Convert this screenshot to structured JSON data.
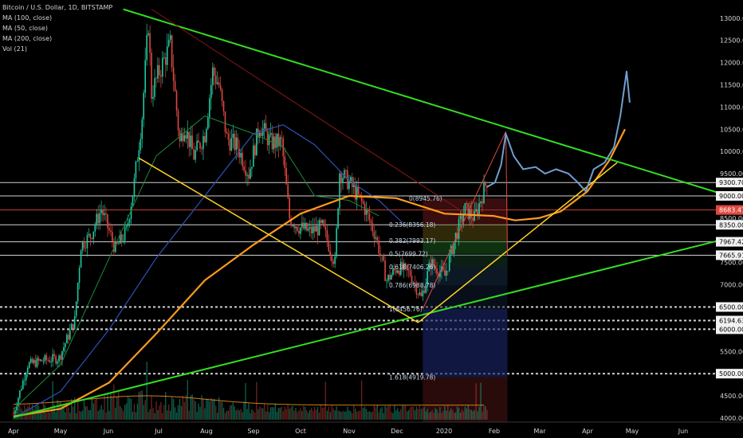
{
  "legend": {
    "symbol": "Bitcoin / U.S. Dollar, 1D, BITSTAMP",
    "ma100": "MA (100, close)",
    "ma50": "MA (50, close)",
    "ma200": "MA (200, close)",
    "vol": "Vol (21)"
  },
  "chart_data": {
    "type": "candlestick",
    "title": "Bitcoin / U.S. Dollar, 1D, BITSTAMP",
    "x_ticks": [
      "Apr",
      "May",
      "Jun",
      "Jul",
      "Aug",
      "Sep",
      "Oct",
      "Nov",
      "Dec",
      "2020",
      "Feb",
      "Mar",
      "Apr",
      "May",
      "Jun"
    ],
    "y_ticks": [
      4000,
      4500,
      5000,
      5500,
      6000,
      6500,
      7000,
      7500,
      8000,
      8500,
      9000,
      9500,
      10000,
      10500,
      11000,
      11500,
      12000,
      12500,
      13000
    ],
    "y_tick_labels": [
      "4000.00",
      "4500.00",
      "5000.00",
      "5500.00",
      "6000.00",
      "6500.00",
      "7000.00",
      "7500.00",
      "8000.00",
      "8500.00",
      "9000.00",
      "9500.00",
      "10000.00",
      "10500.00",
      "11000.00",
      "11500.00",
      "12000.00",
      "12500.00",
      "13000.00"
    ],
    "ylim": [
      3990,
      13220
    ],
    "price_tags": [
      {
        "value": 9300.7,
        "label": "9300.70",
        "bg": "#f2f2f2",
        "fg": "#000000"
      },
      {
        "value": 9000.0,
        "label": "9000.00",
        "bg": "#f2f2f2",
        "fg": "#000000"
      },
      {
        "value": 8683.47,
        "label": "8683.47",
        "bg": "#e0483f",
        "fg": "#ffffff"
      },
      {
        "value": 8350.0,
        "label": "8350.00",
        "bg": "#f2f2f2",
        "fg": "#000000"
      },
      {
        "value": 7967.42,
        "label": "7967.42",
        "bg": "#f2f2f2",
        "fg": "#000000"
      },
      {
        "value": 7665.91,
        "label": "7665.91",
        "bg": "#f2f2f2",
        "fg": "#000000"
      },
      {
        "value": 6500.0,
        "label": "6500.00",
        "bg": "#f2f2f2",
        "fg": "#000000"
      },
      {
        "value": 6194.63,
        "label": "6194.63",
        "bg": "#f2f2f2",
        "fg": "#000000"
      },
      {
        "value": 6000.0,
        "label": "6000.00",
        "bg": "#f2f2f2",
        "fg": "#000000"
      },
      {
        "value": 5000.0,
        "label": "5000.00",
        "bg": "#f2f2f2",
        "fg": "#000000"
      }
    ],
    "fib_labels": [
      {
        "text": "0(8945.76)",
        "value": 8945.76
      },
      {
        "text": "0.236(8356.18)",
        "value": 8356.18
      },
      {
        "text": "0.382(7993.17)",
        "value": 7993.17
      },
      {
        "text": "0.5(7699.72)",
        "value": 7699.72
      },
      {
        "text": "0.618(7406.26)",
        "value": 7406.26
      },
      {
        "text": "0.786(6988.78)",
        "value": 6988.78
      },
      {
        "text": "1(6456.76)",
        "value": 6456.76
      },
      {
        "text": "1.618(4919.78)",
        "value": 4919.78
      }
    ],
    "price_path": [
      [
        "2019-04-01",
        4100
      ],
      [
        "2019-04-10",
        5200
      ],
      [
        "2019-04-20",
        5300
      ],
      [
        "2019-04-30",
        5350
      ],
      [
        "2019-05-10",
        6200
      ],
      [
        "2019-05-14",
        7900
      ],
      [
        "2019-05-20",
        8100
      ],
      [
        "2019-05-27",
        8700
      ],
      [
        "2019-06-05",
        7800
      ],
      [
        "2019-06-12",
        8200
      ],
      [
        "2019-06-17",
        9300
      ],
      [
        "2019-06-22",
        10800
      ],
      [
        "2019-06-26",
        12900
      ],
      [
        "2019-06-28",
        11300
      ],
      [
        "2019-07-03",
        11800
      ],
      [
        "2019-07-10",
        12400
      ],
      [
        "2019-07-16",
        10200
      ],
      [
        "2019-07-19",
        10600
      ],
      [
        "2019-07-25",
        9900
      ],
      [
        "2019-08-01",
        10400
      ],
      [
        "2019-08-06",
        11800
      ],
      [
        "2019-08-10",
        11500
      ],
      [
        "2019-08-15",
        10300
      ],
      [
        "2019-08-22",
        10100
      ],
      [
        "2019-08-29",
        9500
      ],
      [
        "2019-09-05",
        10600
      ],
      [
        "2019-09-12",
        10200
      ],
      [
        "2019-09-19",
        10200
      ],
      [
        "2019-09-24",
        8500
      ],
      [
        "2019-09-30",
        8300
      ],
      [
        "2019-10-07",
        8200
      ],
      [
        "2019-10-15",
        8300
      ],
      [
        "2019-10-23",
        7500
      ],
      [
        "2019-10-26",
        9550
      ],
      [
        "2019-11-02",
        9250
      ],
      [
        "2019-11-10",
        8800
      ],
      [
        "2019-11-18",
        8100
      ],
      [
        "2019-11-25",
        7100
      ],
      [
        "2019-12-02",
        7400
      ],
      [
        "2019-12-10",
        7250
      ],
      [
        "2019-12-17",
        6700
      ],
      [
        "2019-12-23",
        7500
      ],
      [
        "2020-01-01",
        7200
      ],
      [
        "2020-01-08",
        8100
      ],
      [
        "2020-01-14",
        8700
      ],
      [
        "2020-01-20",
        8500
      ],
      [
        "2020-01-28",
        9350
      ]
    ],
    "projection_path": [
      [
        "2020-01-28",
        9200
      ],
      [
        "2020-02-02",
        9300
      ],
      [
        "2020-02-06",
        9700
      ],
      [
        "2020-02-09",
        10400
      ],
      [
        "2020-02-14",
        9900
      ],
      [
        "2020-02-20",
        9600
      ],
      [
        "2020-02-28",
        9650
      ],
      [
        "2020-03-05",
        9500
      ],
      [
        "2020-03-12",
        9600
      ],
      [
        "2020-03-20",
        9500
      ],
      [
        "2020-03-26",
        9300
      ],
      [
        "2020-03-31",
        9100
      ],
      [
        "2020-04-05",
        9600
      ],
      [
        "2020-04-12",
        9750
      ],
      [
        "2020-04-18",
        10100
      ],
      [
        "2020-04-22",
        10800
      ],
      [
        "2020-04-26",
        11800
      ],
      [
        "2020-04-28",
        11100
      ]
    ],
    "ma200": [
      [
        "2019-04-01",
        4040
      ],
      [
        "2019-05-01",
        4210
      ],
      [
        "2019-06-01",
        4800
      ],
      [
        "2019-07-01",
        5900
      ],
      [
        "2019-08-01",
        7100
      ],
      [
        "2019-09-01",
        7900
      ],
      [
        "2019-10-01",
        8600
      ],
      [
        "2019-11-01",
        9000
      ],
      [
        "2019-12-01",
        8950
      ],
      [
        "2020-01-01",
        8600
      ],
      [
        "2020-02-01",
        8550
      ],
      [
        "2020-02-15",
        8450
      ],
      [
        "2020-03-01",
        8500
      ],
      [
        "2020-03-15",
        8650
      ],
      [
        "2020-04-01",
        9100
      ],
      [
        "2020-04-15",
        9800
      ],
      [
        "2020-04-25",
        10500
      ]
    ],
    "ma100": [
      [
        "2019-04-01",
        4000
      ],
      [
        "2019-05-01",
        4600
      ],
      [
        "2019-06-01",
        6000
      ],
      [
        "2019-07-01",
        7600
      ],
      [
        "2019-08-01",
        9000
      ],
      [
        "2019-09-01",
        10400
      ],
      [
        "2019-09-20",
        10600
      ],
      [
        "2019-10-10",
        10150
      ],
      [
        "2019-11-01",
        9350
      ],
      [
        "2019-11-20",
        8900
      ],
      [
        "2019-12-05",
        8400
      ]
    ],
    "ma50": [
      [
        "2019-04-01",
        4200
      ],
      [
        "2019-05-01",
        5200
      ],
      [
        "2019-06-01",
        7600
      ],
      [
        "2019-07-01",
        9900
      ],
      [
        "2019-08-01",
        10800
      ],
      [
        "2019-09-01",
        10400
      ],
      [
        "2019-09-20",
        10100
      ],
      [
        "2019-10-10",
        9000
      ],
      [
        "2019-11-01",
        8900
      ],
      [
        "2019-11-20",
        8550
      ]
    ],
    "ma50_color": "#1b8a3a",
    "ma100_color": "#2f52b5",
    "ma200_color": "#ff9a1f",
    "projection_color": "#6f9fd0",
    "up_color": "#1fc9a0",
    "down_color": "#e0483f",
    "trendline_green": "#33dd22",
    "trendline_yellow": "#ffd21f",
    "trendline_darkred": "#8a1717",
    "grid": false,
    "background": "#000000"
  }
}
